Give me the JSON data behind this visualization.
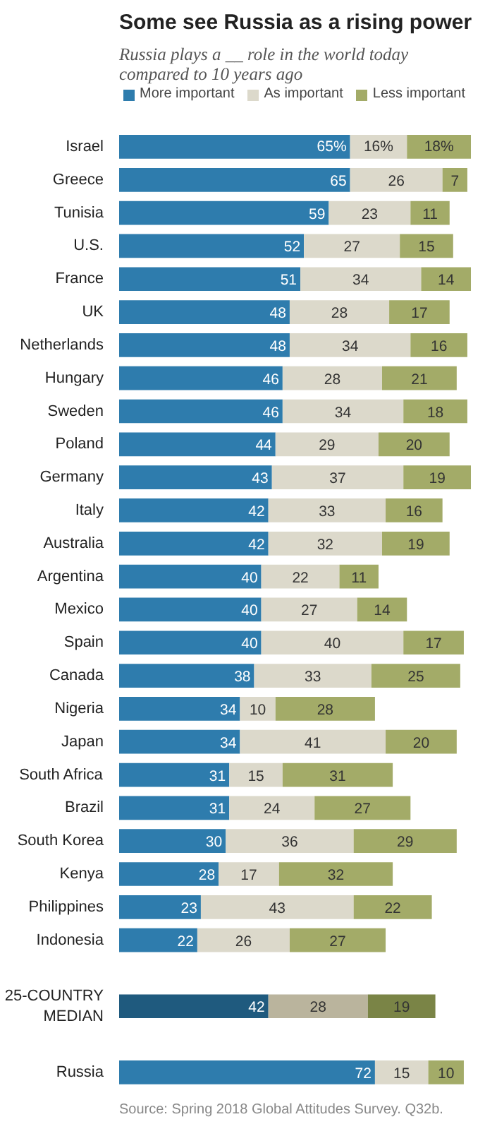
{
  "chart_data": {
    "type": "bar",
    "orientation": "horizontal",
    "stacked": true,
    "title": "Some see Russia as a rising power",
    "subtitle": "Russia plays a __ role in the world today compared to 10 years ago",
    "categories": [
      "Israel",
      "Greece",
      "Tunisia",
      "U.S.",
      "France",
      "UK",
      "Netherlands",
      "Hungary",
      "Sweden",
      "Poland",
      "Germany",
      "Italy",
      "Australia",
      "Argentina",
      "Mexico",
      "Spain",
      "Canada",
      "Nigeria",
      "Japan",
      "South Africa",
      "Brazil",
      "South Korea",
      "Kenya",
      "Philippines",
      "Indonesia",
      null,
      "25-COUNTRY MEDIAN",
      null,
      "Russia"
    ],
    "series": [
      {
        "name": "More important",
        "color": "#2e7cad",
        "colors": [
          null,
          null,
          null,
          null,
          null,
          null,
          null,
          null,
          null,
          null,
          null,
          null,
          null,
          null,
          null,
          null,
          null,
          null,
          null,
          null,
          null,
          null,
          null,
          null,
          null,
          null,
          "#1f5a7e",
          null,
          null
        ],
        "values": [
          65,
          65,
          59,
          52,
          51,
          48,
          48,
          46,
          46,
          44,
          43,
          42,
          42,
          40,
          40,
          40,
          38,
          34,
          34,
          31,
          31,
          30,
          28,
          23,
          22,
          null,
          42,
          null,
          72
        ],
        "value_labels": [
          "65%",
          "65",
          "59",
          "52",
          "51",
          "48",
          "48",
          "46",
          "46",
          "44",
          "43",
          "42",
          "42",
          "40",
          "40",
          "40",
          "38",
          "34",
          "34",
          "31",
          "31",
          "30",
          "28",
          "23",
          "22",
          null,
          "42",
          null,
          "72"
        ]
      },
      {
        "name": "As important",
        "color": "#dcd9cb",
        "colors": [
          null,
          null,
          null,
          null,
          null,
          null,
          null,
          null,
          null,
          null,
          null,
          null,
          null,
          null,
          null,
          null,
          null,
          null,
          null,
          null,
          null,
          null,
          null,
          null,
          null,
          null,
          "#bab49d",
          null,
          null
        ],
        "values": [
          16,
          26,
          23,
          27,
          34,
          28,
          34,
          28,
          34,
          29,
          37,
          33,
          32,
          22,
          27,
          40,
          33,
          10,
          41,
          15,
          24,
          36,
          17,
          43,
          26,
          null,
          28,
          null,
          15
        ],
        "value_labels": [
          "16%",
          "26",
          "23",
          "27",
          "34",
          "28",
          "34",
          "28",
          "34",
          "29",
          "37",
          "33",
          "32",
          "22",
          "27",
          "40",
          "33",
          "10",
          "41",
          "15",
          "24",
          "36",
          "17",
          "43",
          "26",
          null,
          "28",
          null,
          "15"
        ]
      },
      {
        "name": "Less important",
        "color": "#a3ab68",
        "colors": [
          null,
          null,
          null,
          null,
          null,
          null,
          null,
          null,
          null,
          null,
          null,
          null,
          null,
          null,
          null,
          null,
          null,
          null,
          null,
          null,
          null,
          null,
          null,
          null,
          null,
          null,
          "#7a8446",
          null,
          null
        ],
        "values": [
          18,
          7,
          11,
          15,
          14,
          17,
          16,
          21,
          18,
          20,
          19,
          16,
          19,
          11,
          14,
          17,
          25,
          28,
          20,
          31,
          27,
          29,
          32,
          22,
          27,
          null,
          19,
          null,
          10
        ],
        "value_labels": [
          "18%",
          "7",
          "11",
          "15",
          "14",
          "17",
          "16",
          "21",
          "18",
          "20",
          "19",
          "16",
          "19",
          "11",
          "14",
          "17",
          "25",
          "28",
          "20",
          "31",
          "27",
          "29",
          "32",
          "22",
          "27",
          null,
          "19",
          null,
          "10"
        ]
      }
    ],
    "legend": "top",
    "grid": false,
    "tick_labels": "y",
    "annotations": [
      "Source: Spring 2018 Global Attitudes Survey. Q32b."
    ]
  }
}
